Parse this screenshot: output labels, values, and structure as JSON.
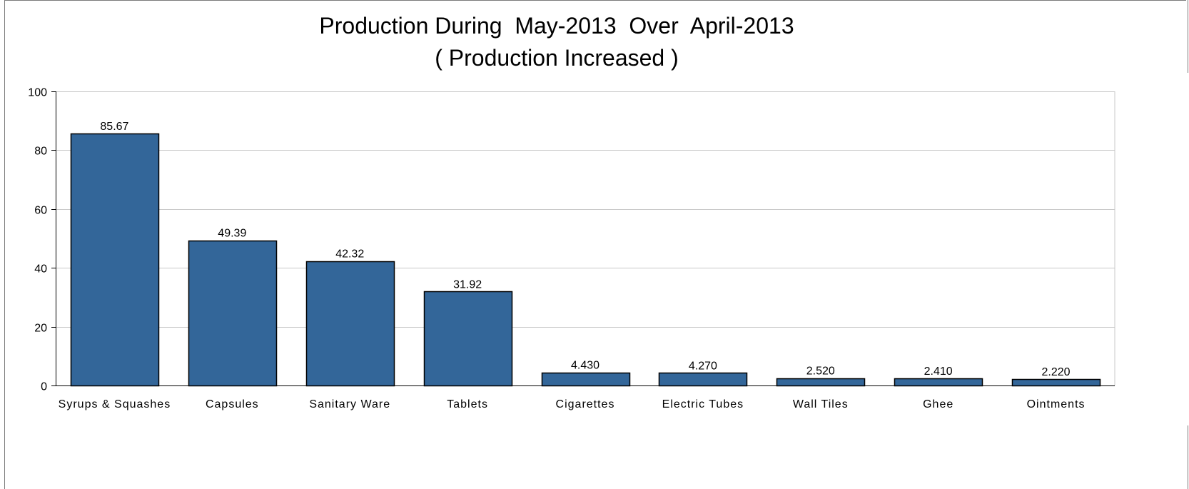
{
  "chart_data": {
    "type": "bar",
    "title": "Production During  May-2013  Over  April-2013",
    "subtitle": "( Production Increased )",
    "xlabel": "",
    "ylabel": "",
    "categories": [
      "Syrups & Squashes",
      "Capsules",
      "Sanitary Ware",
      "Tablets",
      "Cigarettes",
      "Electric Tubes",
      "Wall Tiles",
      "Ghee",
      "Ointments"
    ],
    "values": [
      85.67,
      49.39,
      42.32,
      31.92,
      4.43,
      4.27,
      2.52,
      2.41,
      2.22
    ],
    "value_labels": [
      "85.67",
      "49.39",
      "42.32",
      "31.92",
      "4.430",
      "4.270",
      "2.520",
      "2.410",
      "2.220"
    ],
    "ylim": [
      0,
      100
    ],
    "yticks": [
      0,
      20,
      40,
      60,
      80,
      100
    ],
    "grid": true,
    "legend": "none",
    "bar_color": "#336699",
    "bar_edge_color": "#000000",
    "grid_color": "#c8c8c8"
  }
}
